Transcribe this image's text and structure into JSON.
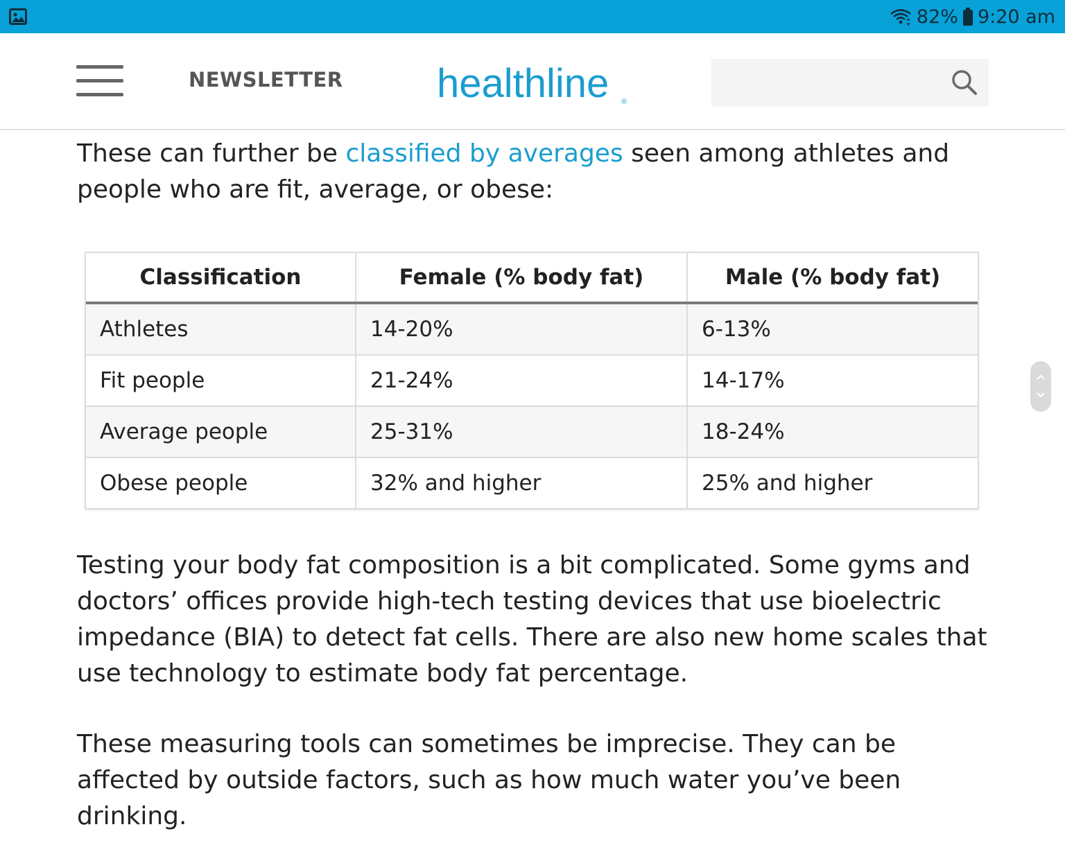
{
  "status_bar": {
    "battery": "82%",
    "time": "9:20 am",
    "icons": [
      "gallery-icon",
      "wifi-icon",
      "battery-icon"
    ]
  },
  "header": {
    "menu_icon": "hamburger-menu-icon",
    "newsletter_label": "NEWSLETTER",
    "logo_text": "healthline",
    "search_placeholder": "",
    "search_icon": "search-icon"
  },
  "article": {
    "intro_before_link": "These can further be ",
    "intro_link": "classified by averages",
    "intro_after_link": " seen among athletes and people who are fit, average, or obese:",
    "paragraph_2": "Testing your body fat composition is a bit complicated. Some gyms and doctors’ offices provide high-tech testing devices that use bioelectric impedance (BIA) to detect fat cells. There are also new home scales that use technology to estimate body fat percentage.",
    "paragraph_3": "These measuring tools can sometimes be imprecise. They can be affected by outside factors, such as how much water you’ve been drinking."
  },
  "table": {
    "headers": [
      "Classification",
      "Female (% body fat)",
      "Male (% body fat)"
    ],
    "rows": [
      [
        "Athletes",
        "14-20%",
        "6-13%"
      ],
      [
        "Fit people",
        "21-24%",
        "14-17%"
      ],
      [
        "Average people",
        "25-31%",
        "18-24%"
      ],
      [
        "Obese people",
        "32% and higher",
        "25% and higher"
      ]
    ]
  },
  "colors": {
    "status_bar": "#08a2d8",
    "brand": "#1a9dcf",
    "link": "#1a9dcf",
    "text": "#222222"
  }
}
